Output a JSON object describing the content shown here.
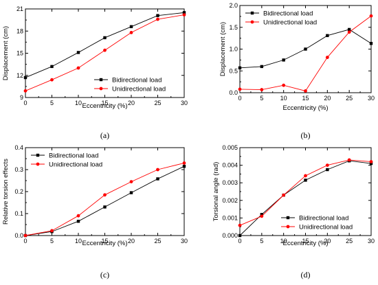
{
  "colors": {
    "bidirectional": "#000000",
    "unidirectional": "#ff0000"
  },
  "chart_data": [
    {
      "type": "line",
      "panel_label": "(a)",
      "xlabel": "Eccentricity (%)",
      "ylabel": "Displacement (cm)",
      "xlim": [
        0,
        30
      ],
      "ylim": [
        9,
        21
      ],
      "xticks": [
        0,
        5,
        10,
        15,
        20,
        25,
        30
      ],
      "yticks": [
        9,
        12,
        15,
        18,
        21
      ],
      "legend_position": "bottom-right",
      "x": [
        0,
        5,
        10,
        15,
        20,
        25,
        30
      ],
      "series": [
        {
          "name": "Bidirectional load",
          "marker": "square",
          "values": [
            11.7,
            13.2,
            15.1,
            17.1,
            18.6,
            20.1,
            20.5
          ]
        },
        {
          "name": "Unidirectional load",
          "marker": "circle",
          "values": [
            9.9,
            11.4,
            13.0,
            15.4,
            17.8,
            19.6,
            20.2
          ]
        }
      ]
    },
    {
      "type": "line",
      "panel_label": "(b)",
      "xlabel": "Eccentricity (%)",
      "ylabel": "Displacement (cm)",
      "xlim": [
        0,
        30
      ],
      "ylim": [
        0,
        2
      ],
      "xticks": [
        0,
        5,
        10,
        15,
        20,
        25,
        30
      ],
      "yticks": [
        "0.0",
        "0.5",
        "1.0",
        "1.5",
        "2.0"
      ],
      "legend_position": "top-left",
      "x": [
        0,
        5,
        10,
        15,
        20,
        25,
        30
      ],
      "series": [
        {
          "name": "Bidirectional load",
          "marker": "square",
          "values": [
            0.57,
            0.6,
            0.75,
            1.0,
            1.31,
            1.45,
            1.13
          ]
        },
        {
          "name": "Unidirectional load",
          "marker": "circle",
          "values": [
            0.08,
            0.07,
            0.17,
            0.04,
            0.81,
            1.39,
            1.76
          ]
        }
      ]
    },
    {
      "type": "line",
      "panel_label": "(c)",
      "xlabel": "Eccentricity (%)",
      "ylabel": "Relative torsion effects",
      "xlim": [
        0,
        30
      ],
      "ylim": [
        0,
        0.4
      ],
      "xticks": [
        0,
        5,
        10,
        15,
        20,
        25,
        30
      ],
      "yticks": [
        "0.0",
        "0.1",
        "0.2",
        "0.3",
        "0.4"
      ],
      "legend_position": "top-left",
      "x": [
        0,
        5,
        10,
        15,
        20,
        25,
        30
      ],
      "series": [
        {
          "name": "Bidirectional load",
          "marker": "square",
          "values": [
            0.0,
            0.018,
            0.065,
            0.13,
            0.195,
            0.258,
            0.315
          ]
        },
        {
          "name": "Unidirectional load",
          "marker": "circle",
          "values": [
            0.0,
            0.022,
            0.09,
            0.185,
            0.245,
            0.3,
            0.33
          ]
        }
      ]
    },
    {
      "type": "line",
      "panel_label": "(d)",
      "xlabel": "Eccentricity (%)",
      "ylabel": "Torsional angle (rad)",
      "xlim": [
        0,
        30
      ],
      "ylim": [
        0,
        0.005
      ],
      "xticks": [
        0,
        5,
        10,
        15,
        20,
        25,
        30
      ],
      "yticks": [
        "0.000",
        "0.001",
        "0.002",
        "0.003",
        "0.004",
        "0.005"
      ],
      "legend_position": "bottom-right",
      "x": [
        0,
        5,
        10,
        15,
        20,
        25,
        30
      ],
      "series": [
        {
          "name": "Bidirectional load",
          "marker": "square",
          "values": [
            0.0,
            0.0012,
            0.0023,
            0.00315,
            0.00375,
            0.00425,
            0.0041
          ]
        },
        {
          "name": "Unidirectional load",
          "marker": "circle",
          "values": [
            0.00058,
            0.0011,
            0.0023,
            0.0034,
            0.004,
            0.0043,
            0.0042
          ]
        }
      ]
    }
  ]
}
